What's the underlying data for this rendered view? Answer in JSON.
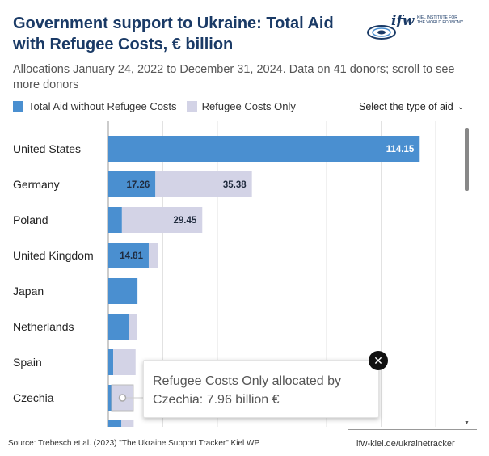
{
  "title": "Government support to Ukraine: Total Aid with Refugee Costs, € billion",
  "subtitle": "Allocations January 24, 2022 to December 31, 2024. Data on 41 donors; scroll to see more donors",
  "logo": {
    "word": "ifw",
    "line1": "KIEL INSTITUTE FOR",
    "line2": "THE WORLD ECONOMY"
  },
  "controls": {
    "type_select": "Select the type of aid"
  },
  "tooltip": {
    "text": "Refugee Costs Only allocated by Czechia: 7.96 billion €"
  },
  "footer": {
    "source": "Source: Trebesch et al. (2023) \"The Ukraine Support Tracker\" Kiel WP",
    "url": "ifw-kiel.de/ukrainetracker"
  },
  "colors": {
    "total_aid": "#4a8fd0",
    "refugee": "#d3d3e6",
    "title": "#1a3a66"
  },
  "chart_data": {
    "type": "bar",
    "orientation": "horizontal",
    "stacked": true,
    "categories": [
      "United States",
      "Germany",
      "Poland",
      "United Kingdom",
      "Japan",
      "Netherlands",
      "Spain",
      "Czechia",
      ""
    ],
    "series": [
      {
        "name": "Total Aid without Refugee Costs",
        "values": [
          114.15,
          17.26,
          5.0,
          14.81,
          10.7,
          7.6,
          1.8,
          1.2,
          4.8
        ]
      },
      {
        "name": "Refugee Costs Only",
        "values": [
          0,
          35.38,
          29.45,
          3.3,
          0,
          3.0,
          8.2,
          7.96,
          4.5
        ]
      }
    ],
    "data_labels": [
      {
        "category": "United States",
        "series": 0,
        "text": "114.15"
      },
      {
        "category": "Germany",
        "series": 0,
        "text": "17.26"
      },
      {
        "category": "Germany",
        "series": 1,
        "text": "35.38"
      },
      {
        "category": "Poland",
        "series": 1,
        "text": "29.45"
      },
      {
        "category": "United Kingdom",
        "series": 0,
        "text": "14.81"
      }
    ],
    "xlim": [
      0,
      120
    ],
    "gridlines": [
      0,
      20,
      40,
      60,
      80,
      100,
      120
    ],
    "grid": true,
    "legend": "top-left",
    "highlighted": {
      "category": "Czechia",
      "series": 1
    }
  }
}
